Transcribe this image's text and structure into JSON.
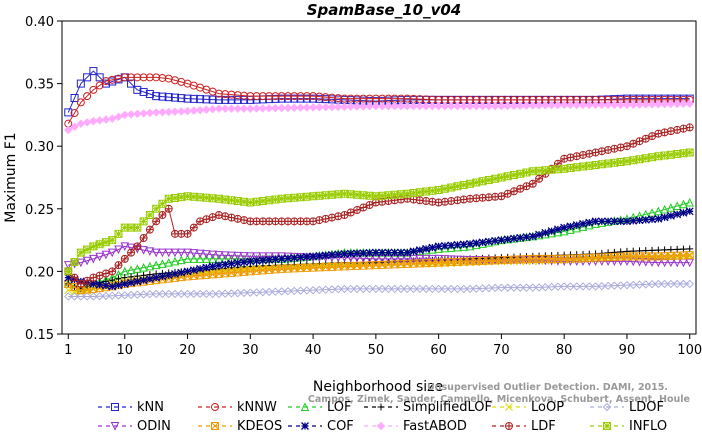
{
  "chart_data": {
    "type": "line",
    "title": "SpamBase_10_v04",
    "xlabel": "Neighborhood size",
    "ylabel": "Maximum F1",
    "xlim": [
      0,
      101
    ],
    "ylim": [
      0.15,
      0.4
    ],
    "xticks": [
      1,
      10,
      20,
      30,
      40,
      50,
      60,
      70,
      80,
      90,
      100
    ],
    "xtick_labels": [
      "1",
      "10",
      "20",
      "30",
      "40",
      "50",
      "60",
      "70",
      "80",
      "90",
      "100"
    ],
    "yticks": [
      0.15,
      0.2,
      0.25,
      0.3,
      0.35,
      0.4
    ],
    "ytick_labels": [
      "0.15",
      "0.20",
      "0.25",
      "0.30",
      "0.35",
      "0.40"
    ],
    "grid": false,
    "legend_position": "bottom",
    "watermark": {
      "line1": "Unsupervised Outlier Detection. DAMI, 2015.",
      "line2": "Campos, Zimek, Sander, Campello, Micenkova, Schubert, Assent, Houle"
    },
    "series": [
      {
        "name": "kNN",
        "color": "#2222cc",
        "marker": "square",
        "x": [
          1,
          3,
          5,
          7,
          10,
          12,
          15,
          20,
          25,
          30,
          35,
          40,
          45,
          50,
          55,
          60,
          65,
          70,
          75,
          80,
          85,
          90,
          95,
          100
        ],
        "values": [
          0.327,
          0.35,
          0.36,
          0.35,
          0.355,
          0.345,
          0.34,
          0.338,
          0.337,
          0.337,
          0.338,
          0.338,
          0.337,
          0.336,
          0.337,
          0.337,
          0.337,
          0.337,
          0.337,
          0.337,
          0.337,
          0.338,
          0.338,
          0.338
        ]
      },
      {
        "name": "kNNW",
        "color": "#cc2222",
        "marker": "circle",
        "x": [
          1,
          3,
          5,
          7,
          10,
          12,
          15,
          17,
          20,
          25,
          30,
          35,
          40,
          45,
          50,
          55,
          60,
          65,
          70,
          75,
          80,
          85,
          90,
          95,
          100
        ],
        "values": [
          0.318,
          0.335,
          0.345,
          0.352,
          0.355,
          0.355,
          0.355,
          0.354,
          0.35,
          0.342,
          0.34,
          0.34,
          0.34,
          0.338,
          0.338,
          0.338,
          0.337,
          0.337,
          0.337,
          0.337,
          0.337,
          0.337,
          0.337,
          0.337,
          0.337
        ]
      },
      {
        "name": "LOF",
        "color": "#22cc22",
        "marker": "triangle-up",
        "x": [
          1,
          3,
          5,
          8,
          10,
          15,
          20,
          25,
          30,
          35,
          40,
          45,
          50,
          55,
          60,
          65,
          70,
          75,
          80,
          85,
          90,
          95,
          100
        ],
        "values": [
          0.19,
          0.185,
          0.19,
          0.195,
          0.2,
          0.205,
          0.21,
          0.21,
          0.21,
          0.21,
          0.212,
          0.215,
          0.215,
          0.215,
          0.218,
          0.22,
          0.225,
          0.228,
          0.232,
          0.238,
          0.242,
          0.248,
          0.255
        ]
      },
      {
        "name": "SimplifiedLOF",
        "color": "#000000",
        "marker": "plus",
        "x": [
          1,
          3,
          5,
          8,
          10,
          15,
          20,
          25,
          30,
          35,
          40,
          45,
          50,
          55,
          60,
          65,
          70,
          75,
          80,
          85,
          90,
          95,
          100
        ],
        "values": [
          0.19,
          0.186,
          0.19,
          0.193,
          0.195,
          0.198,
          0.2,
          0.202,
          0.204,
          0.205,
          0.206,
          0.207,
          0.207,
          0.208,
          0.209,
          0.21,
          0.211,
          0.212,
          0.213,
          0.214,
          0.216,
          0.217,
          0.218
        ]
      },
      {
        "name": "LoOP",
        "color": "#dddd00",
        "marker": "x",
        "x": [
          1,
          3,
          5,
          8,
          10,
          15,
          20,
          25,
          30,
          35,
          40,
          45,
          50,
          55,
          60,
          65,
          70,
          75,
          80,
          85,
          90,
          95,
          100
        ],
        "values": [
          0.185,
          0.183,
          0.186,
          0.19,
          0.192,
          0.195,
          0.198,
          0.2,
          0.202,
          0.203,
          0.204,
          0.205,
          0.205,
          0.206,
          0.206,
          0.207,
          0.208,
          0.208,
          0.209,
          0.21,
          0.211,
          0.211,
          0.212
        ]
      },
      {
        "name": "LDOF",
        "color": "#aaaadd",
        "marker": "diamond",
        "x": [
          1,
          3,
          5,
          10,
          15,
          20,
          25,
          30,
          35,
          40,
          45,
          50,
          55,
          60,
          65,
          70,
          75,
          80,
          85,
          90,
          95,
          100
        ],
        "values": [
          0.18,
          0.18,
          0.18,
          0.181,
          0.182,
          0.182,
          0.182,
          0.183,
          0.184,
          0.185,
          0.186,
          0.186,
          0.186,
          0.186,
          0.186,
          0.187,
          0.187,
          0.188,
          0.188,
          0.189,
          0.19,
          0.19
        ]
      },
      {
        "name": "ODIN",
        "color": "#9933cc",
        "marker": "triangle-down",
        "x": [
          1,
          3,
          5,
          8,
          10,
          12,
          15,
          20,
          25,
          30,
          35,
          40,
          45,
          50,
          55,
          60,
          65,
          70,
          75,
          80,
          85,
          90,
          95,
          100
        ],
        "values": [
          0.205,
          0.207,
          0.21,
          0.215,
          0.22,
          0.218,
          0.215,
          0.215,
          0.213,
          0.212,
          0.212,
          0.211,
          0.211,
          0.21,
          0.21,
          0.21,
          0.209,
          0.209,
          0.209,
          0.208,
          0.208,
          0.208,
          0.207,
          0.207
        ]
      },
      {
        "name": "KDEOS",
        "color": "#ee9900",
        "marker": "square-x",
        "x": [
          1,
          3,
          5,
          8,
          10,
          15,
          20,
          25,
          30,
          35,
          40,
          45,
          50,
          55,
          60,
          65,
          70,
          75,
          80,
          85,
          90,
          95,
          100
        ],
        "values": [
          0.19,
          0.185,
          0.186,
          0.188,
          0.19,
          0.193,
          0.196,
          0.198,
          0.2,
          0.202,
          0.203,
          0.204,
          0.205,
          0.206,
          0.207,
          0.208,
          0.209,
          0.21,
          0.21,
          0.211,
          0.212,
          0.212,
          0.213
        ]
      },
      {
        "name": "COF",
        "color": "#000088",
        "marker": "asterisk",
        "x": [
          1,
          3,
          5,
          8,
          10,
          15,
          20,
          25,
          30,
          35,
          40,
          45,
          50,
          55,
          60,
          65,
          70,
          75,
          80,
          85,
          90,
          95,
          100
        ],
        "values": [
          0.195,
          0.192,
          0.19,
          0.188,
          0.19,
          0.195,
          0.2,
          0.205,
          0.208,
          0.21,
          0.212,
          0.214,
          0.215,
          0.215,
          0.22,
          0.222,
          0.225,
          0.228,
          0.235,
          0.24,
          0.24,
          0.242,
          0.248
        ]
      },
      {
        "name": "FastABOD",
        "color": "#ffaaff",
        "marker": "diamond-filled",
        "x": [
          1,
          3,
          5,
          8,
          10,
          15,
          20,
          25,
          30,
          40,
          50,
          60,
          70,
          80,
          90,
          100
        ],
        "values": [
          0.313,
          0.318,
          0.32,
          0.322,
          0.325,
          0.327,
          0.328,
          0.33,
          0.33,
          0.331,
          0.332,
          0.332,
          0.332,
          0.333,
          0.333,
          0.334
        ]
      },
      {
        "name": "LDF",
        "color": "#aa2222",
        "marker": "circle-plus",
        "x": [
          1,
          3,
          5,
          8,
          10,
          12,
          15,
          17,
          18,
          20,
          22,
          25,
          30,
          35,
          40,
          45,
          50,
          55,
          60,
          65,
          70,
          75,
          80,
          85,
          90,
          95,
          100
        ],
        "values": [
          0.2,
          0.19,
          0.195,
          0.2,
          0.21,
          0.22,
          0.24,
          0.25,
          0.23,
          0.23,
          0.24,
          0.245,
          0.24,
          0.24,
          0.24,
          0.245,
          0.255,
          0.258,
          0.255,
          0.258,
          0.26,
          0.27,
          0.29,
          0.295,
          0.3,
          0.31,
          0.315
        ]
      },
      {
        "name": "INFLO",
        "color": "#99cc00",
        "marker": "square-star",
        "x": [
          1,
          3,
          5,
          8,
          10,
          12,
          15,
          17,
          20,
          25,
          30,
          35,
          40,
          45,
          50,
          55,
          60,
          65,
          70,
          75,
          80,
          85,
          90,
          95,
          100
        ],
        "values": [
          0.2,
          0.215,
          0.22,
          0.225,
          0.235,
          0.235,
          0.25,
          0.258,
          0.26,
          0.258,
          0.255,
          0.258,
          0.26,
          0.262,
          0.26,
          0.262,
          0.265,
          0.27,
          0.275,
          0.28,
          0.282,
          0.285,
          0.288,
          0.292,
          0.295
        ]
      }
    ]
  }
}
